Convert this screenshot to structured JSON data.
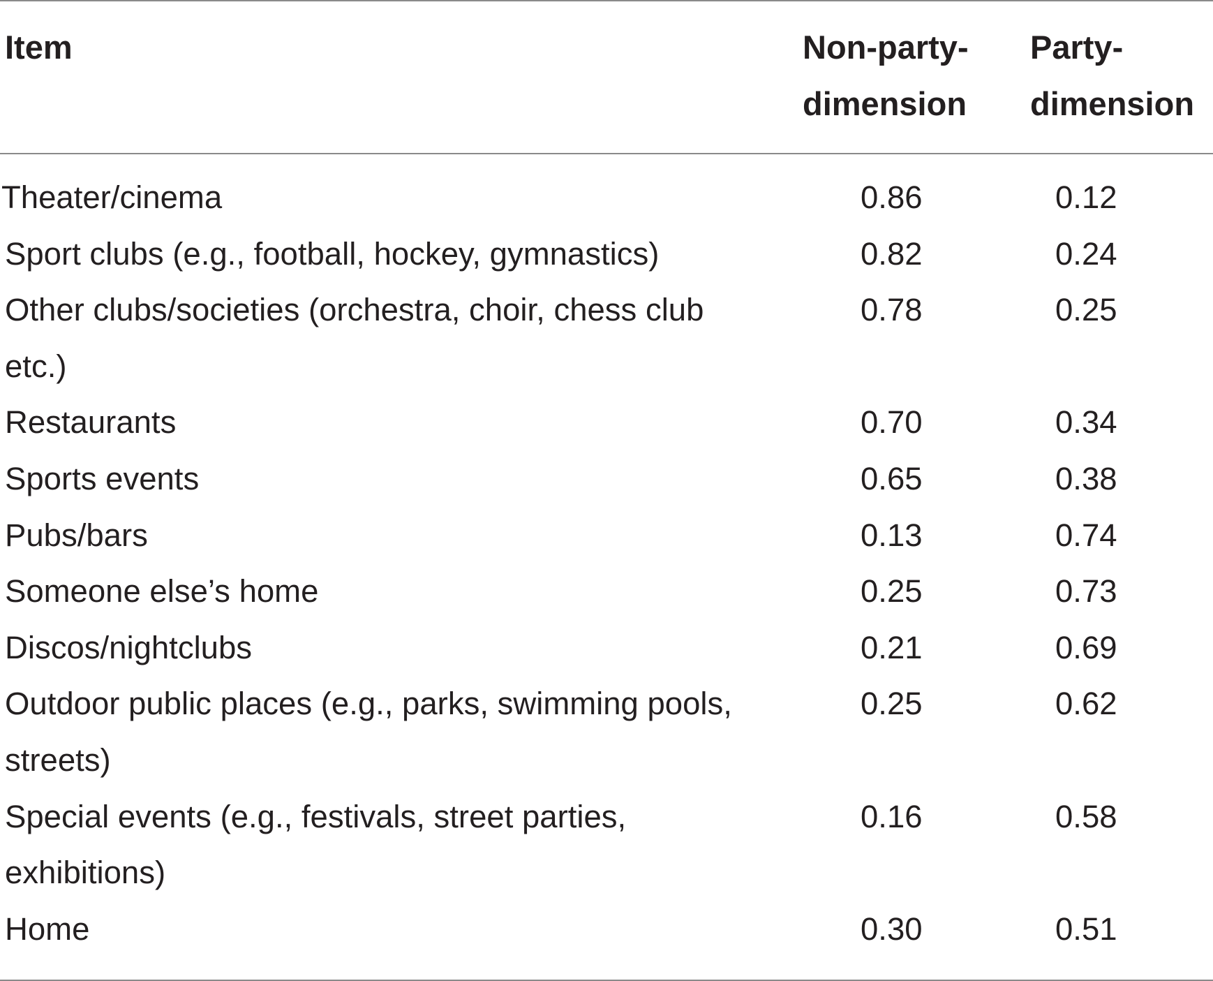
{
  "table": {
    "headers": {
      "item": "Item",
      "col1_line1": "Non-party-",
      "col1_line2": "dimension",
      "col2_line1": "Party-",
      "col2_line2": "dimension"
    },
    "rows": [
      {
        "item": "Theater/cinema",
        "non_party": "0.86",
        "party": "0.12"
      },
      {
        "item": "Sport clubs (e.g., football, hockey, gymnastics)",
        "non_party": "0.82",
        "party": "0.24"
      },
      {
        "item": "Other clubs/societies (orchestra, choir, chess club etc.)",
        "non_party": "0.78",
        "party": "0.25"
      },
      {
        "item": "Restaurants",
        "non_party": "0.70",
        "party": "0.34"
      },
      {
        "item": "Sports events",
        "non_party": "0.65",
        "party": "0.38"
      },
      {
        "item": "Pubs/bars",
        "non_party": "0.13",
        "party": "0.74"
      },
      {
        "item": "Someone else’s home",
        "non_party": "0.25",
        "party": "0.73"
      },
      {
        "item": "Discos/nightclubs",
        "non_party": "0.21",
        "party": "0.69"
      },
      {
        "item": "Outdoor public places (e.g., parks, swimming pools, streets)",
        "non_party": "0.25",
        "party": "0.62"
      },
      {
        "item": "Special events (e.g., festivals, street parties, exhibitions)",
        "non_party": "0.16",
        "party": "0.58"
      },
      {
        "item": "Home",
        "non_party": "0.30",
        "party": "0.51"
      }
    ]
  }
}
